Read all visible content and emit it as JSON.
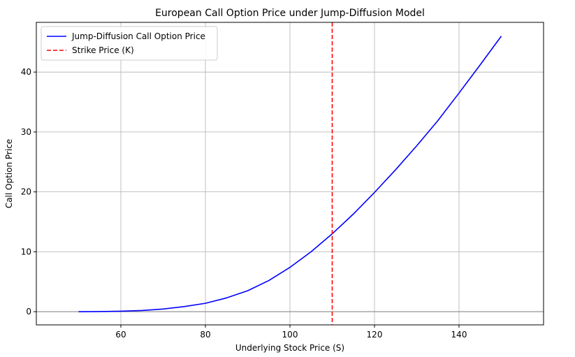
{
  "chart_data": {
    "type": "line",
    "title": "European Call Option Price under Jump-Diffusion Model",
    "xlabel": "Underlying Stock Price (S)",
    "ylabel": "Call Option Price",
    "xlim": [
      40,
      160
    ],
    "ylim": [
      -2.2,
      48.3
    ],
    "xticks": [
      60,
      80,
      100,
      120,
      140
    ],
    "yticks": [
      0,
      10,
      20,
      30,
      40
    ],
    "grid": true,
    "legend_position": "top-left",
    "series": [
      {
        "name": "Jump-Diffusion Call Option Price",
        "color": "#0000ff",
        "style": "solid",
        "x": [
          50,
          55,
          60,
          65,
          70,
          75,
          80,
          85,
          90,
          95,
          100,
          105,
          110,
          115,
          120,
          125,
          130,
          135,
          140,
          145,
          150
        ],
        "y": [
          0.0,
          0.02,
          0.08,
          0.2,
          0.45,
          0.85,
          1.4,
          2.3,
          3.5,
          5.2,
          7.4,
          10.0,
          13.0,
          16.3,
          19.9,
          23.7,
          27.7,
          31.9,
          36.5,
          41.2,
          46.0
        ]
      }
    ],
    "vlines": [
      {
        "name": "Strike Price (K)",
        "x": 110,
        "color": "#ff0000",
        "style": "dashed"
      }
    ],
    "hlines": [
      {
        "y": 0,
        "color": "#808080"
      }
    ]
  }
}
